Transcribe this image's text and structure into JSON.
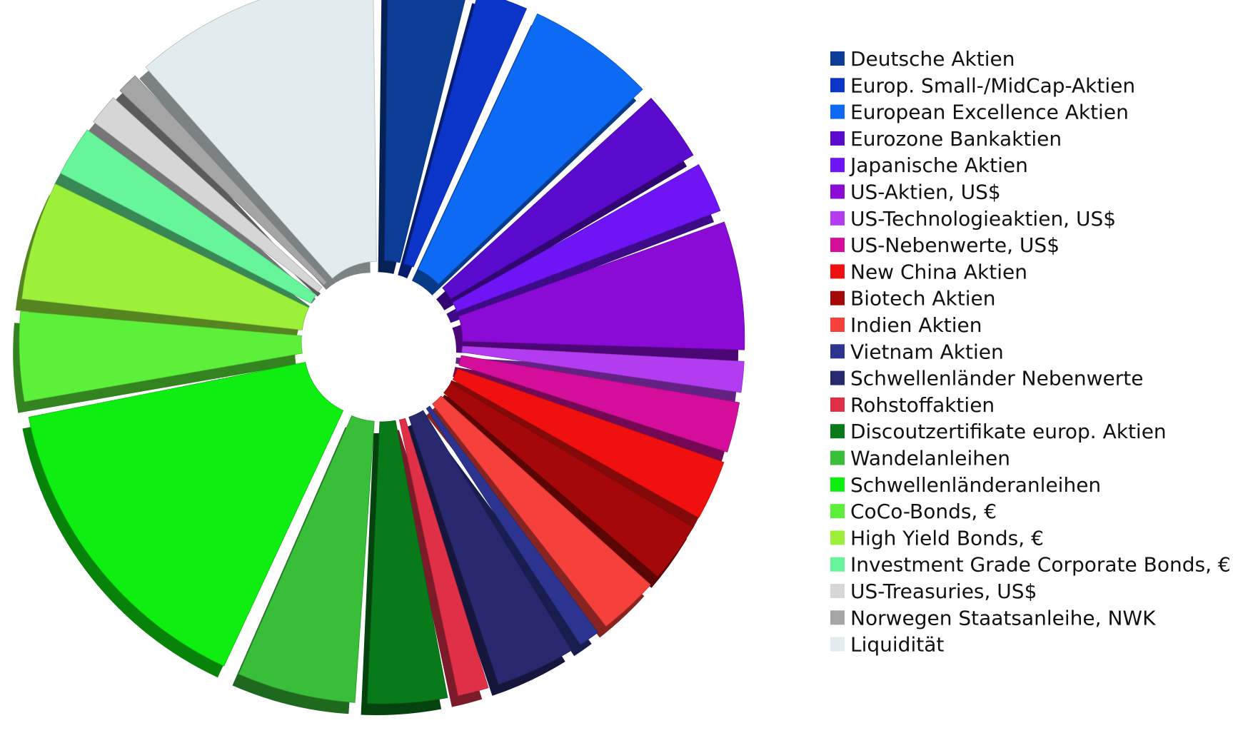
{
  "chart_data": {
    "type": "pie",
    "title": "",
    "legend_position": "right",
    "exploded": true,
    "style_3d": true,
    "slices": [
      {
        "label": "Deutsche Aktien",
        "value": 4.5,
        "color": "#0B3C96"
      },
      {
        "label": "Europ. Small-/MidCap-Aktien",
        "value": 3.0,
        "color": "#0A35C8"
      },
      {
        "label": "European Excellence Aktien",
        "value": 7.0,
        "color": "#0D6AF5"
      },
      {
        "label": "Eurozone Bankaktien",
        "value": 4.0,
        "color": "#5A0ACC"
      },
      {
        "label": "Japanische Aktien",
        "value": 3.0,
        "color": "#6E14F5"
      },
      {
        "label": "US-Aktien, US$",
        "value": 7.0,
        "color": "#8A0AD6"
      },
      {
        "label": "US-Technologieaktien, US$",
        "value": 2.0,
        "color": "#B43CF0"
      },
      {
        "label": "US-Nebenwerte, US$",
        "value": 3.0,
        "color": "#D40E9A"
      },
      {
        "label": "New China Aktien",
        "value": 3.5,
        "color": "#F01010"
      },
      {
        "label": "Biotech Aktien",
        "value": 3.5,
        "color": "#A50808"
      },
      {
        "label": "Indien Aktien",
        "value": 3.5,
        "color": "#F5403C"
      },
      {
        "label": "Vietnam Aktien",
        "value": 1.5,
        "color": "#2C3490"
      },
      {
        "label": "Schwellenländer Nebenwerte",
        "value": 4.5,
        "color": "#28286E"
      },
      {
        "label": "Rohstoffaktien",
        "value": 2.0,
        "color": "#E03048"
      },
      {
        "label": "Discoutzertifikate europ. Aktien",
        "value": 4.5,
        "color": "#087A1A"
      },
      {
        "label": "Wandelanleihen",
        "value": 6.5,
        "color": "#38BE38"
      },
      {
        "label": "Schwellenländeranleihen",
        "value": 17.0,
        "color": "#0EEE10"
      },
      {
        "label": "CoCo-Bonds, €",
        "value": 5.0,
        "color": "#5CF03A"
      },
      {
        "label": "High Yield Bonds, €",
        "value": 6.5,
        "color": "#9CF03A"
      },
      {
        "label": "Investment Grade Corporate Bonds, €",
        "value": 3.0,
        "color": "#66F59A"
      },
      {
        "label": "US-Treasuries, US$",
        "value": 2.0,
        "color": "#D6D6D6"
      },
      {
        "label": "Norwegen Staatsanleihe, NWK",
        "value": 1.5,
        "color": "#A5A5A5"
      },
      {
        "label": "Liquidität",
        "value": 13.0,
        "color": "#E2EBEE"
      }
    ]
  }
}
